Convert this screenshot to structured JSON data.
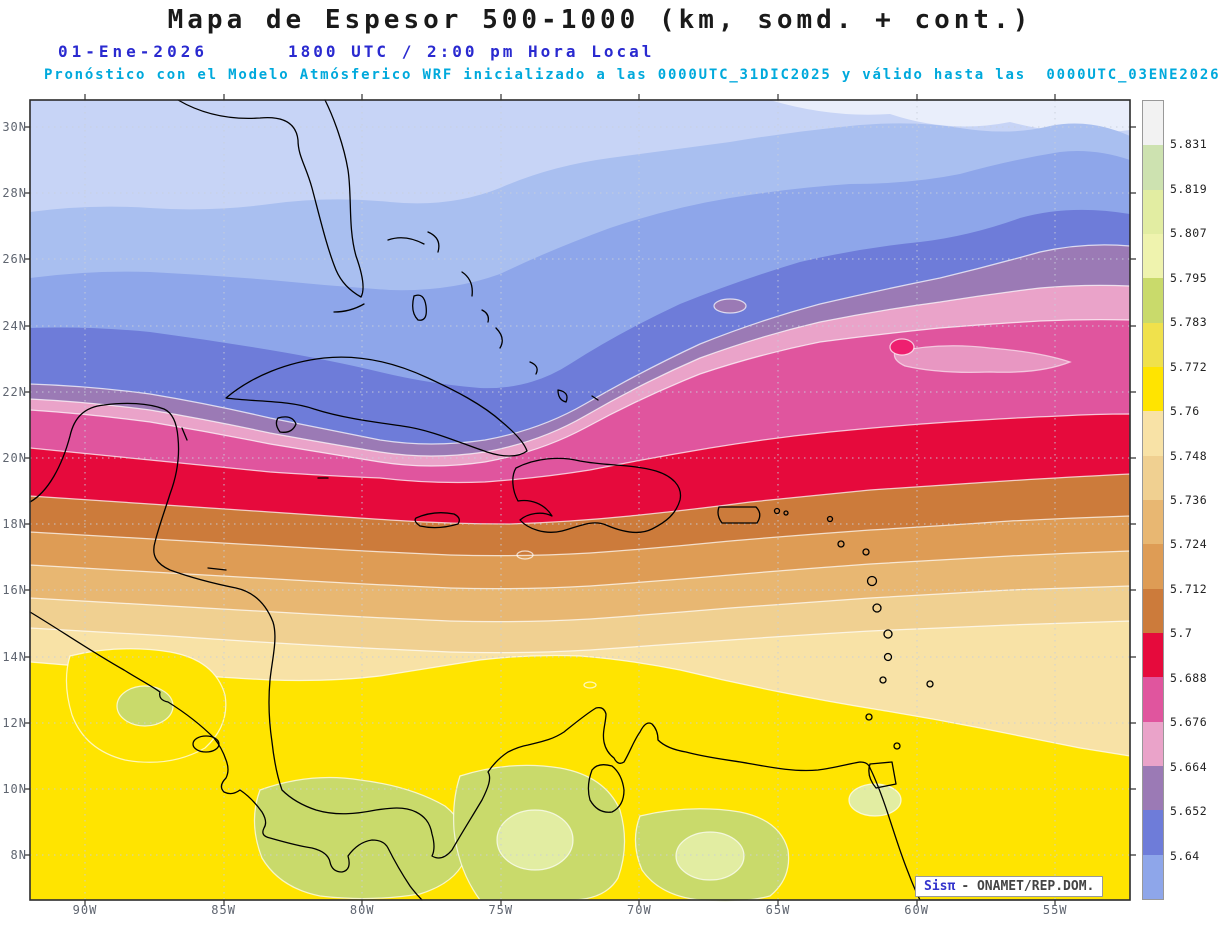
{
  "header": {
    "title": "Mapa de Espesor 500-1000 (km, somd. + cont.)",
    "date": "01-Ene-2026",
    "time": "1800 UTC / 2:00 pm Hora Local",
    "forecast": "Pronóstico con el Modelo Atmósferico WRF inicializado a las 0000UTC_31DIC2025 y válido hasta las  0000UTC_03ENE2026",
    "title_color": "#1a1a1a",
    "datetime_color": "#2a2ad0",
    "forecast_color": "#00a9dc"
  },
  "map": {
    "lat_labels": [
      "30N",
      "28N",
      "26N",
      "24N",
      "22N",
      "20N",
      "18N",
      "16N",
      "14N",
      "12N",
      "10N",
      "8N"
    ],
    "lon_labels": [
      "90W",
      "85W",
      "80W",
      "75W",
      "70W",
      "65W",
      "60W",
      "55W"
    ],
    "grid_color": "#c9cfdb",
    "coast_color": "#000000",
    "frame_color": "#2b2b2b"
  },
  "colorbar": {
    "labels": [
      "5.831",
      "5.819",
      "5.807",
      "5.795",
      "5.783",
      "5.772",
      "5.76",
      "5.748",
      "5.736",
      "5.724",
      "5.712",
      "5.7",
      "5.688",
      "5.676",
      "5.664",
      "5.652",
      "5.64"
    ],
    "colors": [
      "#f2f2f2",
      "#cde2b0",
      "#e2eda2",
      "#eff3ae",
      "#c9da6b",
      "#f0e14c",
      "#ffe400",
      "#f8e2a6",
      "#f0d091",
      "#e8b772",
      "#de9c55",
      "#cc7b3b",
      "#e60a3c",
      "#e0559e",
      "#eaa3c9",
      "#9b7ab5",
      "#6e7cd9",
      "#8ea6ea"
    ]
  },
  "map_colors": {
    "near_white": "#e9eefb",
    "blue_1": "#c7d4f6",
    "blue_2": "#a9bff0",
    "accent_magenta": "#ee2070"
  },
  "watermark": {
    "brand": "Sisπ",
    "text": "- ONAMET/REP.DOM."
  },
  "chart_data": {
    "type": "heatmap",
    "title": "Mapa de Espesor 500-1000 (km, somd. + cont.)",
    "units": "km",
    "contour_levels": [
      5.64,
      5.652,
      5.664,
      5.676,
      5.688,
      5.7,
      5.712,
      5.724,
      5.736,
      5.748,
      5.76,
      5.772,
      5.783,
      5.795,
      5.807,
      5.819,
      5.831
    ],
    "lat_range": [
      "8N",
      "30N"
    ],
    "lon_range": [
      "90W",
      "55W"
    ],
    "pattern": "Thickness decreases from ~5.79 km in the south (yellow/green over Colombia-Venezuela) to ~5.62 km in the north (pale blues over Florida/Bahamas); crimson band 5.688-5.7 crosses ~19-21N through Cuba's east and Hispaniola"
  }
}
